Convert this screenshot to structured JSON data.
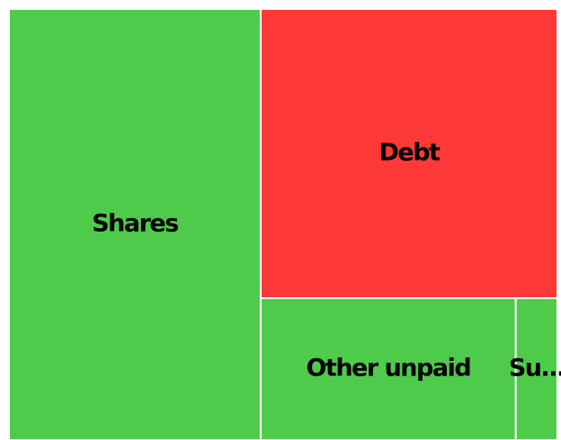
{
  "chart_data": {
    "type": "treemap",
    "categories": [
      "Shares",
      "Debt",
      "Other unpaid",
      "Su..."
    ],
    "values": [
      45.9,
      36.3,
      15.3,
      2.5
    ],
    "colors": [
      "#4fcb4b",
      "#ff3838",
      "#4fcb4b",
      "#4fcb4b"
    ]
  }
}
